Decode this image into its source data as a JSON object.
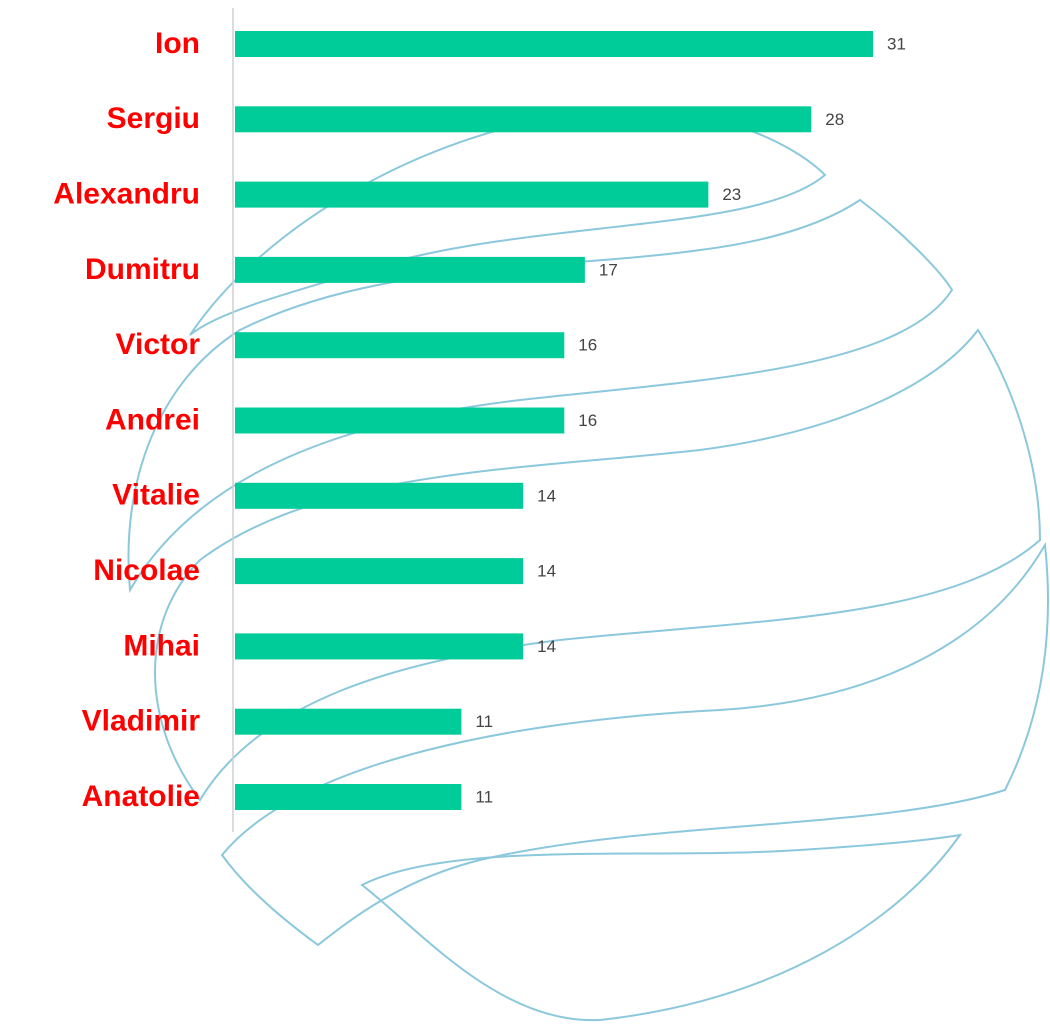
{
  "chart_data": {
    "type": "hbar",
    "categories": [
      "Ion",
      "Sergiu",
      "Alexandru",
      "Dumitru",
      "Victor",
      "Andrei",
      "Vitalie",
      "Nicolae",
      "Mihai",
      "Vladimir",
      "Anatolie"
    ],
    "values": [
      31,
      28,
      23,
      17,
      16,
      16,
      14,
      14,
      14,
      11,
      11
    ],
    "color": "#00cc99"
  }
}
